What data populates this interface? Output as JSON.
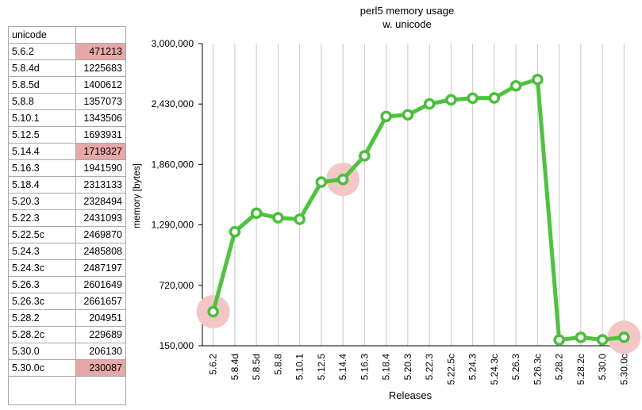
{
  "table": {
    "header": "unicode",
    "rows": [
      {
        "release": "5.6.2",
        "value": "471213",
        "highlight": true
      },
      {
        "release": "5.8.4d",
        "value": "1225683",
        "highlight": false
      },
      {
        "release": "5.8.5d",
        "value": "1400612",
        "highlight": false
      },
      {
        "release": "5.8.8",
        "value": "1357073",
        "highlight": false
      },
      {
        "release": "5.10.1",
        "value": "1343506",
        "highlight": false
      },
      {
        "release": "5.12.5",
        "value": "1693931",
        "highlight": false
      },
      {
        "release": "5.14.4",
        "value": "1719327",
        "highlight": true
      },
      {
        "release": "5.16.3",
        "value": "1941590",
        "highlight": false
      },
      {
        "release": "5.18.4",
        "value": "2313133",
        "highlight": false
      },
      {
        "release": "5.20.3",
        "value": "2328494",
        "highlight": false
      },
      {
        "release": "5.22.3",
        "value": "2431093",
        "highlight": false
      },
      {
        "release": "5.22.5c",
        "value": "2469870",
        "highlight": false
      },
      {
        "release": "5.24.3",
        "value": "2485808",
        "highlight": false
      },
      {
        "release": "5.24.3c",
        "value": "2487197",
        "highlight": false
      },
      {
        "release": "5.26.3",
        "value": "2601649",
        "highlight": false
      },
      {
        "release": "5.26.3c",
        "value": "2661657",
        "highlight": false
      },
      {
        "release": "5.28.2",
        "value": "204951",
        "highlight": false
      },
      {
        "release": "5.28.2c",
        "value": "229689",
        "highlight": false
      },
      {
        "release": "5.30.0",
        "value": "206130",
        "highlight": false
      },
      {
        "release": "5.30.0c",
        "value": "230087",
        "highlight": true
      }
    ]
  },
  "chart_data": {
    "type": "line",
    "title": "perl5 memory usage",
    "subtitle": "w. unicode",
    "xlabel": "Releases",
    "ylabel": "memory [bytes]",
    "ylim": [
      150000,
      3000000
    ],
    "yticks": [
      "150,000",
      "720,000",
      "1,290,000",
      "1,860,000",
      "2,430,000",
      "3,000,000"
    ],
    "ytick_values": [
      150000,
      720000,
      1290000,
      1860000,
      2430000,
      3000000
    ],
    "grid": "vertical",
    "categories": [
      "5.6.2",
      "5.8.4d",
      "5.8.5d",
      "5.8.8",
      "5.10.1",
      "5.12.5",
      "5.14.4",
      "5.16.3",
      "5.18.4",
      "5.20.3",
      "5.22.3",
      "5.22.5c",
      "5.24.3",
      "5.24.3c",
      "5.26.3",
      "5.26.3c",
      "5.28.2",
      "5.28.2c",
      "5.30.0",
      "5.30.0c"
    ],
    "values": [
      471213,
      1225683,
      1400612,
      1357073,
      1343506,
      1693931,
      1719327,
      1941590,
      2313133,
      2328494,
      2431093,
      2469870,
      2485808,
      2487197,
      2601649,
      2661657,
      204951,
      229689,
      206130,
      230087
    ],
    "highlighted": [
      "5.6.2",
      "5.14.4",
      "5.30.0c"
    ],
    "colors": {
      "line": "#4cc43c",
      "marker_stroke": "#48bf38",
      "marker_fill": "#ffffff",
      "highlight": "#f5c6c6",
      "grid": "#c8c8c8",
      "axis": "#000000"
    }
  }
}
